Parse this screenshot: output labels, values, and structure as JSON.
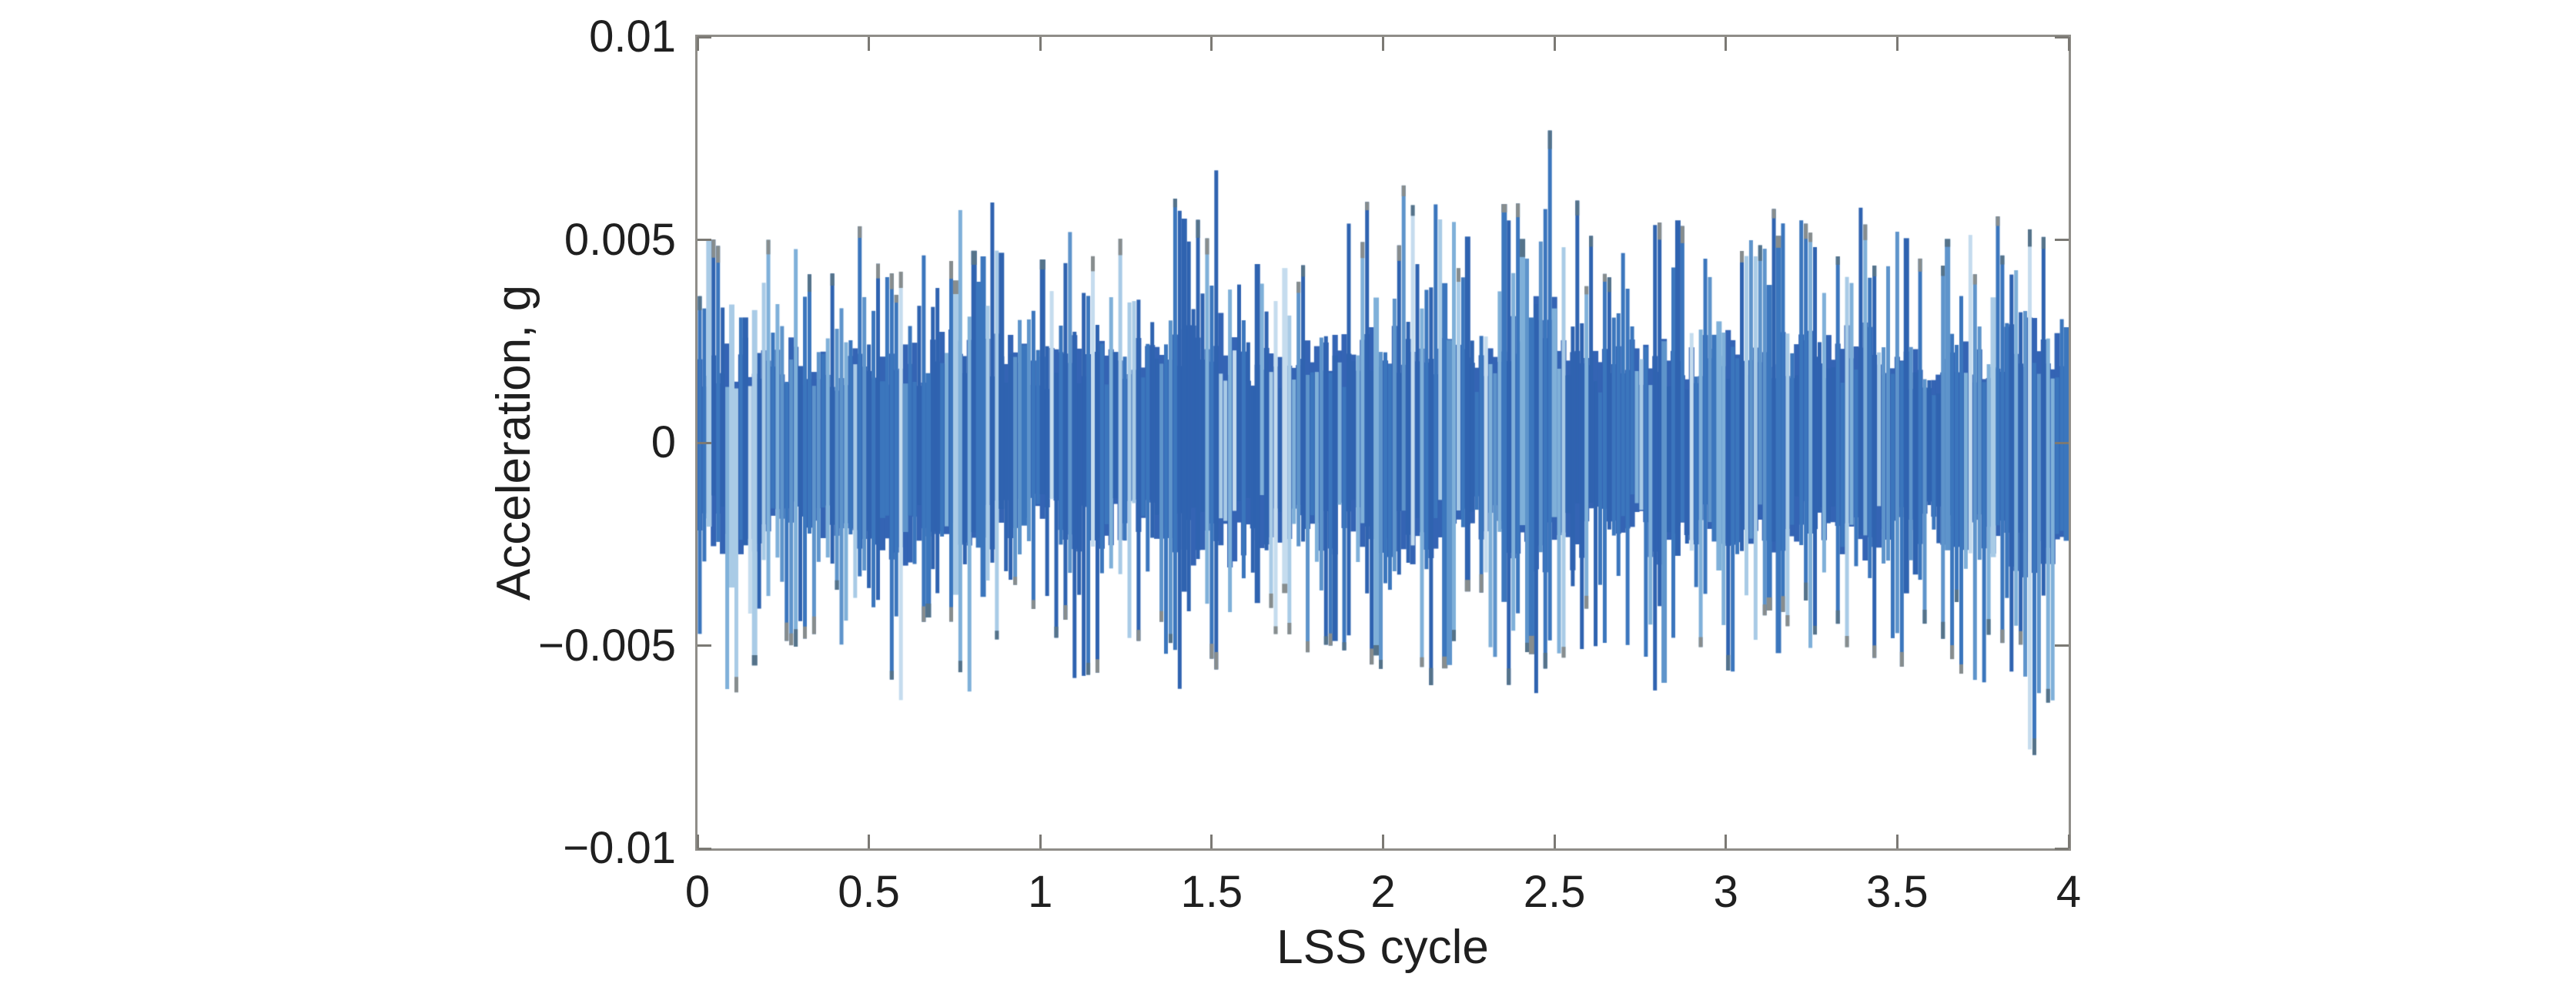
{
  "figure": {
    "background": "#ffffff",
    "frame_color": "#8f8d88",
    "tick_color": "#7b7974",
    "text_color": "#1f1f1f"
  },
  "chart_data": {
    "type": "line",
    "title": "",
    "xlabel": "LSS cycle",
    "ylabel": "Acceleration, g",
    "xlim": [
      0,
      4
    ],
    "ylim": [
      -0.01,
      0.01
    ],
    "grid": false,
    "legend": null,
    "box": true,
    "tick_direction": "in",
    "xticks": {
      "values": [
        0,
        0.5,
        1,
        1.5,
        2,
        2.5,
        3,
        3.5,
        4
      ],
      "labels": [
        "0",
        "0.5",
        "1",
        "1.5",
        "2",
        "2.5",
        "3",
        "3.5",
        "4"
      ]
    },
    "yticks": {
      "values": [
        -0.01,
        -0.005,
        0,
        0.005,
        0.01
      ],
      "labels": [
        "−0.01",
        "−0.005",
        "0",
        "0.005",
        "0.01"
      ]
    },
    "series": [
      {
        "name": "acceleration-signal",
        "kind": "broadband-vibration-waveform",
        "description": "zero-mean dense oscillatory signal with amplitude-modulated envelope, approx 3 modulation bumps per LSS cycle, global max about +0.0078 g near cycle 2.47 and min about -0.0078 g near cycle 3.9",
        "envelope_x_step": 0.1,
        "envelope_pos": [
          0.0047,
          0.0056,
          0.005,
          0.0054,
          0.0046,
          0.0056,
          0.0049,
          0.0056,
          0.0058,
          0.006,
          0.0044,
          0.0061,
          0.0056,
          0.0052,
          0.0062,
          0.0071,
          0.0052,
          0.0048,
          0.006,
          0.0054,
          0.0064,
          0.0063,
          0.0055,
          0.0046,
          0.007,
          0.0078,
          0.0052,
          0.005,
          0.0056,
          0.0054,
          0.0056,
          0.006,
          0.0054,
          0.0058,
          0.0065,
          0.0052,
          0.0046,
          0.0055,
          0.0056,
          0.0067,
          0.0052
        ],
        "envelope_neg": [
          0.0046,
          0.0063,
          0.0052,
          0.005,
          0.0048,
          0.006,
          0.0065,
          0.0052,
          0.0062,
          0.005,
          0.0046,
          0.0058,
          0.0056,
          0.005,
          0.006,
          0.007,
          0.0056,
          0.005,
          0.0062,
          0.0052,
          0.0056,
          0.0066,
          0.0054,
          0.0048,
          0.0066,
          0.0074,
          0.0056,
          0.0048,
          0.0062,
          0.0054,
          0.0056,
          0.0058,
          0.0052,
          0.0054,
          0.0064,
          0.0056,
          0.005,
          0.0058,
          0.006,
          0.0078,
          0.0054
        ],
        "core_fraction": 0.38,
        "core_color": "#3464b4",
        "palette": [
          {
            "color": "#2f63b0",
            "weight": 0.26
          },
          {
            "color": "#3b76bd",
            "weight": 0.3
          },
          {
            "color": "#5e94cb",
            "weight": 0.16
          },
          {
            "color": "#7fb0d9",
            "weight": 0.14
          },
          {
            "color": "#a9cbe6",
            "weight": 0.09
          },
          {
            "color": "#c5dcee",
            "weight": 0.05
          }
        ],
        "cap_colors": [
          "#878d8e",
          "#55738a"
        ],
        "strokes": 300,
        "stroke_width": 5,
        "seed": 90125
      }
    ]
  }
}
